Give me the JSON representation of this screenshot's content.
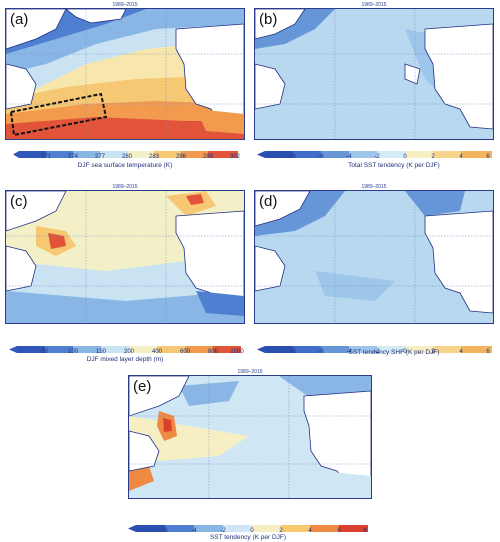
{
  "panels": [
    {
      "id": "a",
      "letter": "(a)",
      "title": "1989–2015",
      "colorbar": {
        "label": "DJF sea surface temperature (K)",
        "ticks": [
          "271",
          "274",
          "277",
          "280",
          "283",
          "286",
          "289",
          "302"
        ],
        "colors": [
          "#2f56b8",
          "#4f7fd0",
          "#89b6e4",
          "#c9e3f3",
          "#f3efc7",
          "#f7c873",
          "#f29a4e",
          "#e2543a"
        ]
      }
    },
    {
      "id": "b",
      "letter": "(b)",
      "title": "1989–2015",
      "colorbar": {
        "label": "Total SST tendency (K per DJF)",
        "ticks": [
          "-8",
          "-6",
          "-4",
          "-2",
          "0",
          "2",
          "4",
          "6"
        ],
        "colors": [
          "#2a4fb0",
          "#3f6ec8",
          "#6796d8",
          "#9ec6ea",
          "#d4ebf6",
          "#f6efc4",
          "#f6d48a",
          "#f3b35f"
        ]
      }
    },
    {
      "id": "c",
      "letter": "(c)",
      "title": "1989–2015",
      "colorbar": {
        "label": "DJF mixed layer depth (m)",
        "ticks": [
          "50",
          "100",
          "150",
          "200",
          "400",
          "600",
          "800",
          "1000"
        ],
        "colors": [
          "#2f56b8",
          "#4f7fd0",
          "#89b6e4",
          "#c9e3f3",
          "#f3efc7",
          "#f7c873",
          "#f29a4e",
          "#e2543a"
        ]
      }
    },
    {
      "id": "d",
      "letter": "(d)",
      "title": "1989–2015",
      "colorbar": {
        "label": "SST tendency SHF (K per DJF)",
        "ticks": [
          "-8",
          "-6",
          "-4",
          "-2",
          "0",
          "2",
          "4",
          "6"
        ],
        "colors": [
          "#2a4fb0",
          "#3f6ec8",
          "#6796d8",
          "#9ec6ea",
          "#d4ebf6",
          "#f6efc4",
          "#f6d48a",
          "#f3b35f"
        ]
      }
    },
    {
      "id": "e",
      "letter": "(e)",
      "title": "1989–2015",
      "colorbar": {
        "label": "SST tendency (K per DJF)",
        "ticks": [
          "-6",
          "-4",
          "-2",
          "0",
          "2",
          "4",
          "6",
          "8"
        ],
        "colors": [
          "#2a4fb0",
          "#4f7fd0",
          "#89b6e4",
          "#cfe6f4",
          "#f6efc4",
          "#f6c86f",
          "#ef8a45",
          "#d9402e"
        ]
      }
    }
  ],
  "colors": {
    "land": "#ffffff",
    "coast": "#1f2f86",
    "grid": "#7d8bc4",
    "box": "#111111"
  }
}
